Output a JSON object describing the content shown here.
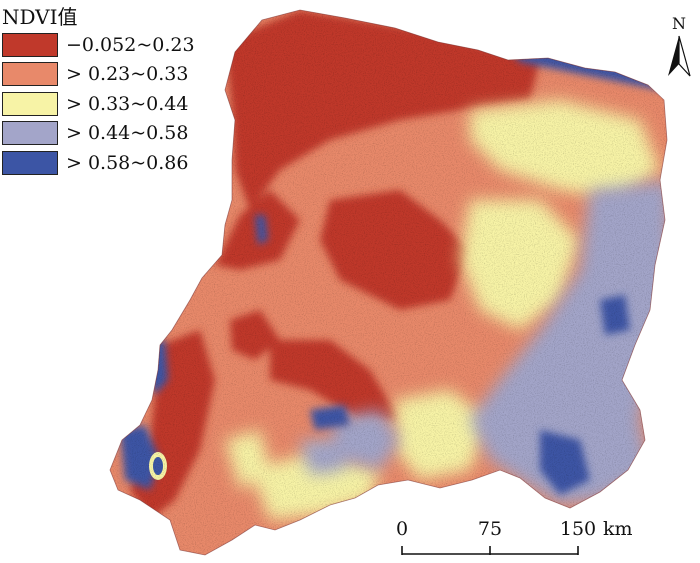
{
  "legend": {
    "title": "NDVI值",
    "items": [
      {
        "label": "−0.052~0.23",
        "color": "#c0392b"
      },
      {
        "label": "> 0.23~0.33",
        "color": "#e8896a"
      },
      {
        "label": "> 0.33~0.44",
        "color": "#f7f3a6"
      },
      {
        "label": "> 0.44~0.58",
        "color": "#a3a5c9"
      },
      {
        "label": "> 0.58~0.86",
        "color": "#3c55a5"
      }
    ]
  },
  "north_arrow": {
    "letter": "N",
    "icon": "north-arrow-icon"
  },
  "scale_bar": {
    "ticks": [
      "0",
      "75",
      "150"
    ],
    "unit": "km"
  }
}
